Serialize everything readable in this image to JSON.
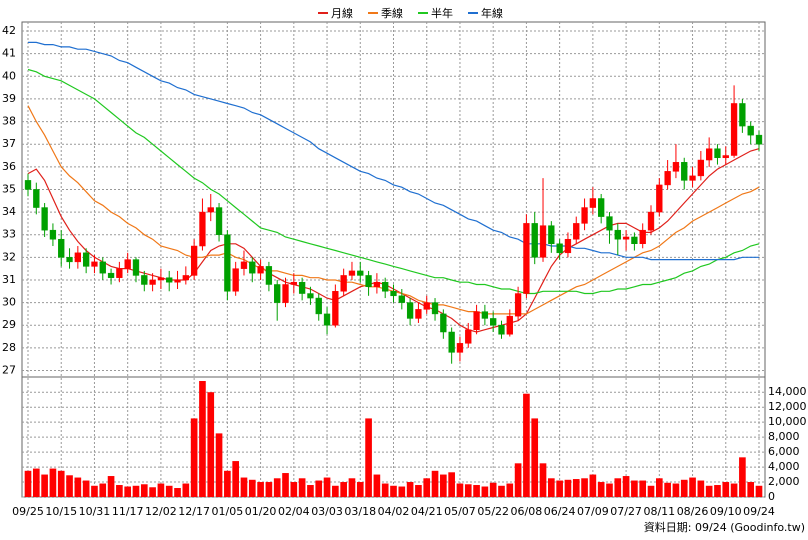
{
  "chart_data": {
    "type": "candlestick",
    "categories": [
      "09/25",
      null,
      null,
      null,
      "10/15",
      null,
      null,
      null,
      "10/31",
      null,
      null,
      null,
      "11/17",
      null,
      null,
      null,
      "12/02",
      null,
      null,
      null,
      "12/17",
      null,
      null,
      null,
      "01/05",
      null,
      null,
      null,
      "01/20",
      null,
      null,
      null,
      "02/04",
      null,
      null,
      null,
      "03/03",
      null,
      null,
      null,
      "03/18",
      null,
      null,
      null,
      "04/02",
      null,
      null,
      null,
      "04/21",
      null,
      null,
      null,
      "05/07",
      null,
      null,
      null,
      "05/22",
      null,
      null,
      null,
      "06/08",
      null,
      null,
      null,
      "06/24",
      null,
      null,
      null,
      "07/09",
      null,
      null,
      null,
      "07/27",
      null,
      null,
      null,
      "08/11",
      null,
      null,
      null,
      "08/26",
      null,
      null,
      null,
      "09/10",
      null,
      null,
      null,
      "09/24"
    ],
    "open": [
      35.4,
      35.0,
      34.2,
      33.2,
      32.8,
      32.0,
      31.8,
      32.2,
      31.6,
      31.8,
      31.3,
      31.1,
      31.5,
      31.9,
      31.2,
      30.8,
      31.0,
      31.1,
      30.9,
      31.0,
      31.2,
      32.5,
      34.0,
      34.2,
      33.0,
      30.5,
      31.5,
      31.8,
      31.3,
      31.6,
      30.8,
      30.0,
      30.8,
      30.9,
      30.4,
      30.2,
      29.5,
      29.0,
      30.5,
      31.2,
      31.4,
      31.2,
      30.7,
      30.9,
      30.5,
      30.3,
      30.0,
      29.3,
      29.7,
      30.0,
      29.5,
      28.7,
      27.8,
      28.2,
      28.8,
      29.6,
      29.3,
      29.0,
      28.6,
      29.4,
      30.4,
      33.5,
      32.0,
      33.4,
      32.6,
      32.2,
      32.8,
      33.5,
      34.2,
      34.6,
      33.8,
      33.2,
      32.8,
      32.9,
      32.6,
      33.2,
      34.0,
      35.2,
      35.8,
      36.2,
      35.4,
      35.6,
      36.3,
      36.8,
      36.4,
      36.5,
      38.8,
      37.8,
      37.4
    ],
    "high": [
      35.7,
      35.3,
      34.4,
      33.5,
      33.2,
      32.4,
      32.5,
      32.4,
      32.1,
      32.0,
      31.5,
      31.8,
      32.2,
      32.0,
      31.4,
      31.3,
      31.5,
      31.4,
      31.4,
      31.6,
      32.8,
      34.6,
      34.8,
      34.4,
      33.2,
      31.8,
      32.3,
      32.0,
      31.9,
      31.8,
      31.0,
      31.1,
      31.3,
      31.1,
      30.7,
      30.4,
      29.8,
      30.8,
      31.5,
      31.8,
      31.8,
      31.4,
      31.3,
      31.1,
      30.8,
      30.6,
      30.2,
      30.0,
      30.3,
      30.2,
      29.7,
      28.9,
      28.5,
      29.1,
      29.9,
      29.9,
      29.6,
      29.2,
      29.7,
      30.7,
      33.9,
      34.0,
      35.5,
      33.6,
      32.8,
      33.1,
      33.8,
      34.6,
      35.1,
      34.8,
      34.0,
      33.5,
      33.2,
      33.1,
      33.5,
      34.3,
      35.5,
      36.3,
      37.0,
      36.4,
      36.0,
      36.7,
      37.3,
      37.0,
      36.9,
      39.6,
      39.0,
      38.0,
      37.6
    ],
    "low": [
      34.7,
      33.9,
      32.9,
      32.5,
      31.6,
      31.5,
      31.5,
      31.3,
      31.3,
      31.0,
      30.8,
      30.9,
      31.3,
      30.9,
      30.5,
      30.5,
      30.6,
      30.5,
      30.6,
      30.8,
      31.0,
      32.3,
      33.6,
      32.7,
      30.1,
      30.3,
      31.2,
      30.9,
      31.0,
      30.5,
      29.2,
      29.8,
      30.4,
      30.1,
      29.9,
      29.2,
      28.6,
      28.9,
      30.3,
      31.0,
      30.9,
      30.3,
      30.4,
      30.2,
      30.0,
      29.7,
      29.0,
      29.1,
      29.5,
      29.2,
      28.4,
      27.3,
      27.4,
      28.0,
      28.6,
      29.0,
      28.7,
      28.4,
      28.5,
      29.2,
      30.2,
      31.7,
      31.8,
      32.2,
      31.9,
      32.0,
      32.6,
      33.2,
      33.9,
      33.5,
      32.6,
      32.1,
      32.3,
      32.3,
      32.4,
      33.0,
      33.8,
      35.0,
      35.5,
      35.0,
      35.1,
      35.4,
      36.0,
      36.1,
      36.1,
      36.4,
      37.5,
      37.0,
      36.7
    ],
    "close": [
      35.0,
      34.2,
      33.2,
      32.8,
      32.0,
      31.8,
      32.2,
      31.6,
      31.8,
      31.3,
      31.1,
      31.5,
      31.9,
      31.2,
      30.8,
      31.0,
      31.1,
      30.9,
      31.0,
      31.2,
      32.5,
      34.0,
      34.2,
      33.0,
      30.5,
      31.5,
      31.8,
      31.3,
      31.6,
      30.8,
      30.0,
      30.8,
      30.9,
      30.4,
      30.2,
      29.5,
      29.0,
      30.5,
      31.2,
      31.4,
      31.2,
      30.7,
      30.9,
      30.5,
      30.3,
      30.0,
      29.3,
      29.7,
      30.0,
      29.5,
      28.7,
      27.8,
      28.2,
      28.8,
      29.6,
      29.3,
      29.0,
      28.6,
      29.4,
      30.4,
      33.5,
      32.0,
      33.4,
      32.6,
      32.2,
      32.8,
      33.5,
      34.2,
      34.6,
      33.8,
      33.2,
      32.8,
      32.9,
      32.6,
      33.2,
      34.0,
      35.2,
      35.8,
      36.2,
      35.4,
      35.6,
      36.3,
      36.8,
      36.4,
      36.5,
      38.8,
      37.8,
      37.4,
      37.0
    ],
    "up_color": "#ff0000",
    "down_color": "#00a000",
    "series": [
      {
        "name": "月線",
        "color": "#e0201a",
        "values": [
          35.7,
          35.9,
          35.4,
          34.6,
          33.8,
          33.2,
          32.7,
          32.3,
          32.0,
          31.8,
          31.6,
          31.5,
          31.5,
          31.4,
          31.3,
          31.2,
          31.1,
          31.0,
          31.0,
          31.0,
          31.3,
          31.8,
          32.3,
          32.5,
          32.6,
          32.6,
          32.4,
          32.0,
          31.6,
          31.3,
          31.1,
          30.9,
          30.8,
          30.7,
          30.6,
          30.4,
          30.2,
          30.1,
          30.3,
          30.5,
          30.7,
          30.8,
          30.9,
          30.8,
          30.6,
          30.4,
          30.2,
          30.0,
          29.8,
          29.7,
          29.5,
          29.3,
          29.0,
          28.8,
          28.7,
          28.8,
          28.9,
          29.0,
          29.1,
          29.2,
          29.5,
          30.2,
          30.9,
          31.6,
          32.1,
          32.4,
          32.6,
          32.8,
          33.0,
          33.2,
          33.4,
          33.5,
          33.5,
          33.3,
          33.1,
          33.1,
          33.3,
          33.6,
          34.0,
          34.4,
          34.8,
          35.2,
          35.6,
          35.9,
          36.1,
          36.3,
          36.5,
          36.7,
          36.8
        ]
      },
      {
        "name": "季線",
        "color": "#f07818",
        "values": [
          38.7,
          38.0,
          37.4,
          36.7,
          36.0,
          35.6,
          35.3,
          34.9,
          34.5,
          34.3,
          34.0,
          33.8,
          33.5,
          33.3,
          33.0,
          32.8,
          32.5,
          32.4,
          32.3,
          32.1,
          32.0,
          32.0,
          32.1,
          32.1,
          32.2,
          32.0,
          31.9,
          31.7,
          31.5,
          31.4,
          31.4,
          31.3,
          31.2,
          31.2,
          31.1,
          31.1,
          31.0,
          31.0,
          30.9,
          30.9,
          30.8,
          30.7,
          30.7,
          30.6,
          30.5,
          30.4,
          30.3,
          30.1,
          30.0,
          29.9,
          29.9,
          29.8,
          29.7,
          29.6,
          29.6,
          29.5,
          29.5,
          29.5,
          29.5,
          29.5,
          29.5,
          29.7,
          29.9,
          30.1,
          30.3,
          30.5,
          30.7,
          30.8,
          31.0,
          31.2,
          31.4,
          31.6,
          31.8,
          32.0,
          32.2,
          32.3,
          32.5,
          32.8,
          33.1,
          33.3,
          33.6,
          33.8,
          34.0,
          34.2,
          34.4,
          34.6,
          34.8,
          34.9,
          35.1
        ]
      },
      {
        "name": "半年",
        "color": "#20c820",
        "values": [
          40.3,
          40.2,
          40.0,
          39.9,
          39.8,
          39.6,
          39.4,
          39.2,
          39.0,
          38.7,
          38.4,
          38.1,
          37.8,
          37.5,
          37.3,
          37.0,
          36.7,
          36.4,
          36.1,
          35.8,
          35.5,
          35.3,
          35.0,
          34.8,
          34.5,
          34.2,
          33.9,
          33.6,
          33.3,
          33.2,
          33.1,
          32.9,
          32.8,
          32.7,
          32.6,
          32.5,
          32.4,
          32.3,
          32.2,
          32.1,
          32.0,
          31.9,
          31.8,
          31.7,
          31.6,
          31.5,
          31.4,
          31.3,
          31.2,
          31.1,
          31.1,
          31.0,
          30.9,
          30.9,
          30.8,
          30.8,
          30.7,
          30.6,
          30.6,
          30.5,
          30.4,
          30.4,
          30.5,
          30.5,
          30.5,
          30.5,
          30.5,
          30.4,
          30.4,
          30.5,
          30.5,
          30.6,
          30.6,
          30.7,
          30.8,
          30.8,
          30.9,
          31.0,
          31.1,
          31.3,
          31.4,
          31.6,
          31.7,
          31.9,
          32.0,
          32.2,
          32.3,
          32.5,
          32.6
        ]
      },
      {
        "name": "年線",
        "color": "#1f6fd0",
        "values": [
          41.5,
          41.5,
          41.4,
          41.4,
          41.3,
          41.3,
          41.2,
          41.2,
          41.1,
          41.0,
          40.9,
          40.7,
          40.6,
          40.4,
          40.2,
          40.0,
          39.8,
          39.7,
          39.5,
          39.4,
          39.2,
          39.1,
          39.0,
          38.9,
          38.8,
          38.7,
          38.6,
          38.4,
          38.3,
          38.1,
          37.9,
          37.7,
          37.5,
          37.3,
          37.1,
          36.8,
          36.6,
          36.4,
          36.2,
          36.0,
          35.8,
          35.7,
          35.5,
          35.4,
          35.2,
          35.1,
          34.9,
          34.8,
          34.6,
          34.4,
          34.3,
          34.1,
          33.9,
          33.7,
          33.6,
          33.4,
          33.2,
          33.1,
          32.9,
          32.8,
          32.6,
          32.6,
          32.6,
          32.5,
          32.5,
          32.5,
          32.4,
          32.4,
          32.3,
          32.2,
          32.2,
          32.1,
          32.0,
          32.0,
          32.0,
          31.9,
          31.9,
          31.9,
          31.9,
          31.9,
          31.9,
          31.9,
          31.9,
          31.9,
          31.9,
          31.9,
          32.0,
          32.0,
          32.0
        ]
      }
    ],
    "ylim": [
      26.8,
      42.4
    ],
    "yticks": [
      27,
      28,
      29,
      30,
      31,
      32,
      33,
      34,
      35,
      36,
      37,
      38,
      39,
      40,
      41,
      42
    ],
    "grid": true,
    "volume": {
      "color": "#ff0000",
      "values": [
        3500,
        3800,
        3000,
        3800,
        3500,
        2900,
        2600,
        2200,
        1500,
        1800,
        2800,
        1600,
        1400,
        1500,
        1700,
        1300,
        1800,
        1500,
        1200,
        1800,
        10500,
        15500,
        14000,
        8500,
        3500,
        4800,
        2600,
        2300,
        2000,
        2000,
        2500,
        3200,
        2000,
        2500,
        1600,
        2200,
        2600,
        1500,
        2000,
        2500,
        2000,
        10500,
        3000,
        1800,
        1500,
        1400,
        2000,
        1600,
        2500,
        3500,
        3000,
        3300,
        1800,
        1700,
        1600,
        1400,
        1900,
        1500,
        1800,
        4500,
        13800,
        10500,
        4500,
        2500,
        2200,
        2300,
        2400,
        2500,
        3000,
        2000,
        1800,
        2500,
        2800,
        2200,
        2200,
        1500,
        2500,
        1900,
        1800,
        2300,
        2600,
        2200,
        1500,
        1600,
        2000,
        1800,
        5300,
        2000,
        1500
      ],
      "ylim": [
        0,
        15900
      ],
      "yticks": [
        0,
        {
          "value": 2000,
          "label": "2,000"
        },
        {
          "value": 4000,
          "label": "4,000"
        },
        {
          "value": 6000,
          "label": "6,000"
        },
        {
          "value": 8000,
          "label": "8,000"
        },
        {
          "value": 10000,
          "label": "10,000"
        },
        {
          "value": 12000,
          "label": "12,000"
        },
        {
          "value": 14000,
          "label": "14,000"
        }
      ]
    },
    "footer": "資料日期: 09/24 (Goodinfo.tw)"
  }
}
